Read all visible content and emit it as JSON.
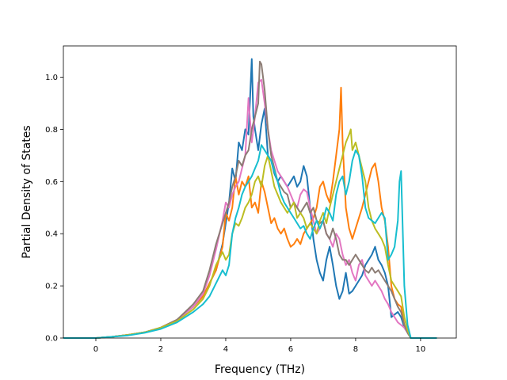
{
  "chart_data": {
    "type": "line",
    "title": "",
    "xlabel": "Frequency (THz)",
    "ylabel": "Partial Density of States",
    "xlim": [
      -1.0,
      11.1
    ],
    "ylim": [
      0.0,
      1.12
    ],
    "xticks": [
      0,
      2,
      4,
      6,
      8,
      10
    ],
    "xtick_labels": [
      "0",
      "2",
      "4",
      "6",
      "8",
      "10"
    ],
    "yticks": [
      0.0,
      0.2,
      0.4,
      0.6,
      0.8,
      1.0
    ],
    "ytick_labels": [
      "0.0",
      "0.2",
      "0.4",
      "0.6",
      "0.8",
      "1.0"
    ],
    "grid": false,
    "legend": "none",
    "series": [
      {
        "color": "#1f77b4",
        "x": [
          -1.0,
          0.0,
          0.5,
          1.0,
          1.5,
          2.0,
          2.5,
          3.0,
          3.3,
          3.5,
          3.7,
          3.9,
          4.0,
          4.1,
          4.2,
          4.3,
          4.4,
          4.5,
          4.6,
          4.7,
          4.8,
          4.85,
          4.9,
          5.0,
          5.1,
          5.2,
          5.3,
          5.4,
          5.5,
          5.6,
          5.7,
          5.8,
          5.9,
          6.0,
          6.1,
          6.2,
          6.3,
          6.4,
          6.5,
          6.6,
          6.7,
          6.8,
          6.9,
          7.0,
          7.1,
          7.2,
          7.3,
          7.4,
          7.5,
          7.6,
          7.7,
          7.8,
          7.9,
          8.0,
          8.1,
          8.2,
          8.3,
          8.4,
          8.5,
          8.6,
          8.7,
          8.8,
          8.9,
          9.0,
          9.1,
          9.2,
          9.3,
          9.4,
          9.5,
          9.6,
          9.7,
          10.5
        ],
        "values": [
          0.0,
          0.0,
          0.005,
          0.012,
          0.022,
          0.04,
          0.07,
          0.12,
          0.16,
          0.21,
          0.26,
          0.36,
          0.44,
          0.52,
          0.65,
          0.6,
          0.75,
          0.72,
          0.8,
          0.78,
          1.07,
          0.85,
          0.8,
          0.72,
          0.82,
          0.88,
          0.7,
          0.68,
          0.63,
          0.6,
          0.62,
          0.6,
          0.58,
          0.6,
          0.62,
          0.58,
          0.6,
          0.66,
          0.62,
          0.5,
          0.38,
          0.3,
          0.25,
          0.22,
          0.3,
          0.35,
          0.28,
          0.2,
          0.15,
          0.18,
          0.25,
          0.17,
          0.18,
          0.2,
          0.22,
          0.24,
          0.28,
          0.3,
          0.32,
          0.35,
          0.3,
          0.28,
          0.25,
          0.2,
          0.08,
          0.09,
          0.1,
          0.08,
          0.04,
          0.02,
          0.0,
          0.0
        ]
      },
      {
        "color": "#ff7f0e",
        "x": [
          -1.0,
          0.0,
          0.5,
          1.0,
          1.5,
          2.0,
          2.5,
          3.0,
          3.3,
          3.5,
          3.7,
          3.9,
          4.0,
          4.1,
          4.2,
          4.3,
          4.4,
          4.5,
          4.6,
          4.7,
          4.8,
          4.9,
          5.0,
          5.1,
          5.2,
          5.3,
          5.4,
          5.5,
          5.6,
          5.7,
          5.8,
          5.9,
          6.0,
          6.1,
          6.2,
          6.3,
          6.4,
          6.5,
          6.6,
          6.7,
          6.8,
          6.9,
          7.0,
          7.1,
          7.2,
          7.3,
          7.4,
          7.5,
          7.55,
          7.6,
          7.7,
          7.8,
          7.9,
          8.0,
          8.1,
          8.2,
          8.3,
          8.4,
          8.5,
          8.6,
          8.7,
          8.8,
          8.9,
          9.0,
          9.1,
          9.2,
          9.3,
          9.4,
          9.5,
          9.6,
          9.7,
          10.5
        ],
        "values": [
          0.0,
          0.0,
          0.005,
          0.012,
          0.022,
          0.04,
          0.07,
          0.12,
          0.16,
          0.21,
          0.26,
          0.35,
          0.48,
          0.45,
          0.5,
          0.62,
          0.55,
          0.6,
          0.58,
          0.62,
          0.5,
          0.52,
          0.48,
          0.6,
          0.56,
          0.5,
          0.44,
          0.46,
          0.42,
          0.4,
          0.42,
          0.38,
          0.35,
          0.36,
          0.38,
          0.36,
          0.4,
          0.42,
          0.44,
          0.46,
          0.5,
          0.58,
          0.6,
          0.55,
          0.52,
          0.6,
          0.7,
          0.8,
          0.96,
          0.75,
          0.5,
          0.42,
          0.38,
          0.42,
          0.46,
          0.5,
          0.55,
          0.6,
          0.65,
          0.67,
          0.6,
          0.5,
          0.45,
          0.35,
          0.2,
          0.15,
          0.13,
          0.12,
          0.05,
          0.02,
          0.0,
          0.0
        ]
      },
      {
        "color": "#e377c2",
        "x": [
          -1.0,
          0.0,
          0.5,
          1.0,
          1.5,
          2.0,
          2.5,
          3.0,
          3.3,
          3.5,
          3.7,
          3.9,
          4.0,
          4.1,
          4.2,
          4.3,
          4.4,
          4.5,
          4.6,
          4.7,
          4.8,
          4.9,
          5.0,
          5.1,
          5.2,
          5.3,
          5.4,
          5.5,
          5.6,
          5.7,
          5.8,
          5.9,
          6.0,
          6.1,
          6.2,
          6.3,
          6.4,
          6.5,
          6.6,
          6.7,
          6.8,
          6.9,
          7.0,
          7.1,
          7.2,
          7.3,
          7.4,
          7.5,
          7.6,
          7.7,
          7.8,
          7.9,
          8.0,
          8.1,
          8.2,
          8.3,
          8.4,
          8.5,
          8.6,
          8.7,
          8.8,
          8.9,
          9.0,
          9.1,
          9.2,
          9.3,
          9.4,
          9.5,
          9.6,
          9.7,
          10.5
        ],
        "values": [
          0.0,
          0.0,
          0.005,
          0.012,
          0.022,
          0.04,
          0.07,
          0.12,
          0.17,
          0.24,
          0.34,
          0.45,
          0.52,
          0.5,
          0.55,
          0.58,
          0.6,
          0.65,
          0.7,
          0.92,
          0.75,
          0.85,
          0.98,
          0.99,
          0.9,
          0.8,
          0.72,
          0.68,
          0.64,
          0.62,
          0.6,
          0.58,
          0.55,
          0.52,
          0.5,
          0.55,
          0.57,
          0.56,
          0.5,
          0.45,
          0.4,
          0.42,
          0.45,
          0.4,
          0.38,
          0.35,
          0.4,
          0.38,
          0.32,
          0.28,
          0.3,
          0.25,
          0.22,
          0.28,
          0.3,
          0.24,
          0.22,
          0.2,
          0.22,
          0.2,
          0.18,
          0.15,
          0.13,
          0.1,
          0.08,
          0.06,
          0.05,
          0.04,
          0.02,
          0.0,
          0.0
        ]
      },
      {
        "color": "#8c7c74",
        "x": [
          -1.0,
          0.0,
          0.5,
          1.0,
          1.5,
          2.0,
          2.5,
          3.0,
          3.3,
          3.5,
          3.7,
          3.9,
          4.0,
          4.1,
          4.2,
          4.3,
          4.4,
          4.5,
          4.6,
          4.7,
          4.8,
          4.9,
          5.0,
          5.05,
          5.1,
          5.2,
          5.3,
          5.4,
          5.5,
          5.6,
          5.7,
          5.8,
          5.9,
          6.0,
          6.1,
          6.2,
          6.3,
          6.4,
          6.5,
          6.6,
          6.7,
          6.8,
          6.9,
          7.0,
          7.1,
          7.2,
          7.3,
          7.4,
          7.5,
          7.6,
          7.7,
          7.8,
          7.9,
          8.0,
          8.1,
          8.2,
          8.3,
          8.4,
          8.5,
          8.6,
          8.7,
          8.8,
          8.9,
          9.0,
          9.1,
          9.2,
          9.3,
          9.4,
          9.5,
          9.6,
          9.7,
          10.5
        ],
        "values": [
          0.0,
          0.0,
          0.005,
          0.012,
          0.022,
          0.04,
          0.07,
          0.13,
          0.18,
          0.26,
          0.36,
          0.44,
          0.48,
          0.52,
          0.58,
          0.62,
          0.68,
          0.66,
          0.7,
          0.72,
          0.8,
          0.85,
          0.9,
          1.06,
          1.05,
          0.95,
          0.8,
          0.7,
          0.65,
          0.6,
          0.58,
          0.56,
          0.55,
          0.5,
          0.52,
          0.5,
          0.48,
          0.5,
          0.52,
          0.48,
          0.5,
          0.45,
          0.44,
          0.45,
          0.4,
          0.38,
          0.42,
          0.38,
          0.32,
          0.3,
          0.3,
          0.28,
          0.3,
          0.32,
          0.3,
          0.28,
          0.26,
          0.25,
          0.27,
          0.25,
          0.26,
          0.24,
          0.22,
          0.2,
          0.18,
          0.15,
          0.12,
          0.1,
          0.05,
          0.02,
          0.0,
          0.0
        ]
      },
      {
        "color": "#bcbd22",
        "x": [
          -1.0,
          0.0,
          0.5,
          1.0,
          1.5,
          2.0,
          2.5,
          3.0,
          3.3,
          3.5,
          3.7,
          3.9,
          4.0,
          4.1,
          4.2,
          4.3,
          4.4,
          4.5,
          4.6,
          4.7,
          4.8,
          4.9,
          5.0,
          5.1,
          5.2,
          5.3,
          5.4,
          5.5,
          5.6,
          5.7,
          5.8,
          5.9,
          6.0,
          6.1,
          6.2,
          6.3,
          6.4,
          6.5,
          6.6,
          6.7,
          6.8,
          6.9,
          7.0,
          7.1,
          7.2,
          7.3,
          7.4,
          7.5,
          7.6,
          7.7,
          7.8,
          7.85,
          7.9,
          8.0,
          8.1,
          8.2,
          8.3,
          8.4,
          8.5,
          8.6,
          8.7,
          8.8,
          8.9,
          9.0,
          9.1,
          9.2,
          9.3,
          9.4,
          9.5,
          9.6,
          9.7,
          10.5
        ],
        "values": [
          0.0,
          0.0,
          0.005,
          0.012,
          0.022,
          0.04,
          0.065,
          0.11,
          0.15,
          0.2,
          0.28,
          0.33,
          0.3,
          0.32,
          0.4,
          0.44,
          0.43,
          0.46,
          0.5,
          0.52,
          0.55,
          0.6,
          0.62,
          0.58,
          0.66,
          0.7,
          0.64,
          0.58,
          0.55,
          0.52,
          0.5,
          0.48,
          0.5,
          0.52,
          0.46,
          0.48,
          0.46,
          0.42,
          0.44,
          0.42,
          0.4,
          0.45,
          0.48,
          0.44,
          0.5,
          0.55,
          0.6,
          0.65,
          0.7,
          0.75,
          0.78,
          0.8,
          0.72,
          0.75,
          0.7,
          0.65,
          0.6,
          0.5,
          0.45,
          0.42,
          0.4,
          0.38,
          0.35,
          0.28,
          0.22,
          0.2,
          0.18,
          0.16,
          0.08,
          0.03,
          0.0,
          0.0
        ]
      },
      {
        "color": "#17becf",
        "x": [
          -1.0,
          0.0,
          0.5,
          1.0,
          1.5,
          2.0,
          2.5,
          3.0,
          3.3,
          3.5,
          3.7,
          3.9,
          4.0,
          4.1,
          4.2,
          4.3,
          4.4,
          4.5,
          4.6,
          4.7,
          4.8,
          4.9,
          5.0,
          5.1,
          5.2,
          5.3,
          5.4,
          5.5,
          5.6,
          5.7,
          5.8,
          5.9,
          6.0,
          6.1,
          6.2,
          6.3,
          6.4,
          6.5,
          6.6,
          6.7,
          6.8,
          6.9,
          7.0,
          7.1,
          7.2,
          7.3,
          7.4,
          7.5,
          7.6,
          7.7,
          7.8,
          7.9,
          8.0,
          8.1,
          8.2,
          8.3,
          8.4,
          8.5,
          8.6,
          8.7,
          8.8,
          8.9,
          9.0,
          9.1,
          9.2,
          9.3,
          9.35,
          9.4,
          9.5,
          9.6,
          9.7,
          10.5
        ],
        "values": [
          0.0,
          0.0,
          0.005,
          0.01,
          0.02,
          0.035,
          0.06,
          0.1,
          0.13,
          0.16,
          0.21,
          0.26,
          0.24,
          0.28,
          0.4,
          0.46,
          0.5,
          0.55,
          0.58,
          0.6,
          0.62,
          0.65,
          0.68,
          0.74,
          0.72,
          0.7,
          0.68,
          0.64,
          0.6,
          0.55,
          0.52,
          0.5,
          0.48,
          0.46,
          0.44,
          0.42,
          0.43,
          0.4,
          0.38,
          0.42,
          0.45,
          0.42,
          0.45,
          0.5,
          0.48,
          0.45,
          0.55,
          0.6,
          0.62,
          0.55,
          0.6,
          0.68,
          0.72,
          0.7,
          0.62,
          0.5,
          0.46,
          0.45,
          0.44,
          0.46,
          0.48,
          0.46,
          0.3,
          0.32,
          0.35,
          0.45,
          0.6,
          0.64,
          0.2,
          0.05,
          0.0,
          0.0
        ]
      }
    ]
  }
}
